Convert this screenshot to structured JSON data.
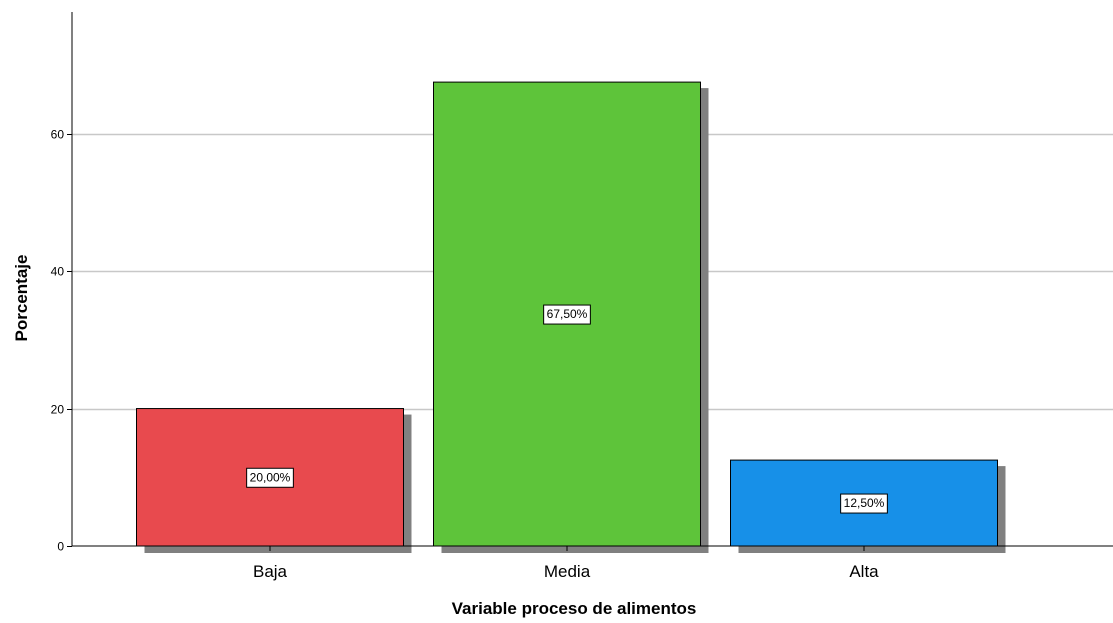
{
  "chart_data": {
    "type": "bar",
    "categories": [
      "Baja",
      "Media",
      "Alta"
    ],
    "values": [
      20.0,
      67.5,
      12.5
    ],
    "data_labels": [
      "20,00%",
      "67,50%",
      "12,50%"
    ],
    "colors": [
      "#e84a4e",
      "#5ec43a",
      "#1790e8"
    ],
    "shadow_color": "#808080",
    "xlabel": "Variable proceso de alimentos",
    "ylabel": "Porcentaje",
    "ylim": [
      0,
      77.7
    ],
    "yticks": [
      0,
      20,
      40,
      60
    ],
    "grid": true
  }
}
